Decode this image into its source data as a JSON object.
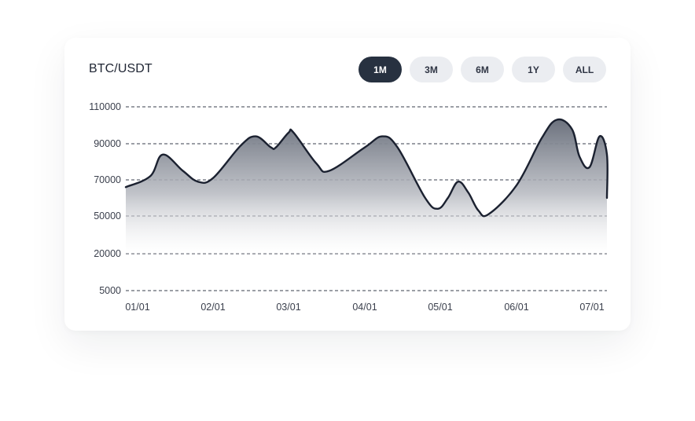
{
  "card": {
    "title": "BTC/USDT",
    "ranges": [
      {
        "label": "1M",
        "active": true
      },
      {
        "label": "3M",
        "active": false
      },
      {
        "label": "6M",
        "active": false
      },
      {
        "label": "1Y",
        "active": false
      },
      {
        "label": "ALL",
        "active": false
      }
    ]
  },
  "chart_data": {
    "type": "area",
    "title": "BTC/USDT",
    "xlabel": "",
    "ylabel": "",
    "y_ticks": [
      "110000",
      "90000",
      "70000",
      "50000",
      "20000",
      "5000"
    ],
    "x_ticks": [
      "01/01",
      "02/01",
      "03/01",
      "04/01",
      "05/01",
      "06/01",
      "07/01"
    ],
    "grid": "horizontal-dashed",
    "line_color": "#1b2130",
    "fill_top_color": "#6e7480",
    "series": [
      {
        "values": [
          {
            "x": "01/01",
            "y": 66000
          },
          {
            "x": "01/06",
            "y": 72000
          },
          {
            "x": "01/11",
            "y": 84000
          },
          {
            "x": "01/19",
            "y": 75000
          },
          {
            "x": "01/25",
            "y": 69000
          },
          {
            "x": "02/01",
            "y": 71000
          },
          {
            "x": "02/12",
            "y": 89000
          },
          {
            "x": "02/18",
            "y": 94000
          },
          {
            "x": "02/24",
            "y": 88000
          },
          {
            "x": "02/26",
            "y": 88000
          },
          {
            "x": "03/01",
            "y": 96000
          },
          {
            "x": "03/03",
            "y": 96000
          },
          {
            "x": "03/12",
            "y": 79000
          },
          {
            "x": "03/17",
            "y": 75000
          },
          {
            "x": "03/31",
            "y": 88000
          },
          {
            "x": "04/08",
            "y": 94000
          },
          {
            "x": "04/14",
            "y": 88000
          },
          {
            "x": "04/25",
            "y": 60000
          },
          {
            "x": "04/30",
            "y": 54000
          },
          {
            "x": "05/04",
            "y": 60000
          },
          {
            "x": "05/08",
            "y": 69000
          },
          {
            "x": "05/12",
            "y": 63000
          },
          {
            "x": "05/16",
            "y": 53000
          },
          {
            "x": "05/20",
            "y": 51000
          },
          {
            "x": "06/01",
            "y": 67000
          },
          {
            "x": "06/11",
            "y": 93000
          },
          {
            "x": "06/17",
            "y": 103000
          },
          {
            "x": "06/23",
            "y": 98000
          },
          {
            "x": "06/26",
            "y": 83000
          },
          {
            "x": "06/30",
            "y": 77000
          },
          {
            "x": "07/04",
            "y": 94000
          },
          {
            "x": "07/08",
            "y": 84000
          },
          {
            "x": "07/11",
            "y": 60000
          }
        ]
      }
    ]
  }
}
